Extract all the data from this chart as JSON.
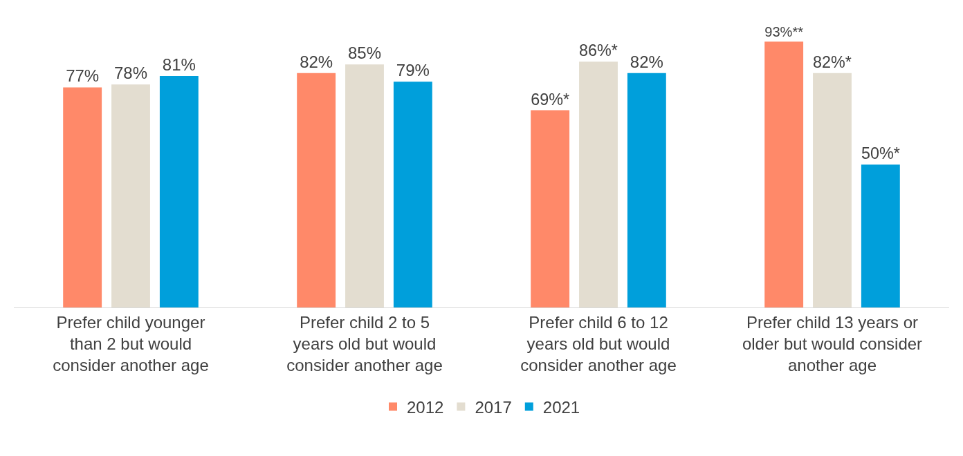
{
  "chart_data": {
    "type": "bar",
    "categories": [
      "Prefer child younger than 2 but would consider another age",
      "Prefer child 2 to 5 years old but would consider another age",
      "Prefer child 6 to 12 years old but would consider another age",
      "Prefer child 13 years or older but would consider another age"
    ],
    "series": [
      {
        "name": "2012",
        "color": "#ff8969",
        "values": [
          77,
          82,
          69,
          93
        ],
        "value_labels": [
          "77%",
          "82%",
          "69%*",
          "93%**"
        ]
      },
      {
        "name": "2017",
        "color": "#e3ddd0",
        "values": [
          78,
          85,
          86,
          82
        ],
        "value_labels": [
          "78%",
          "85%",
          "86%*",
          "82%*"
        ]
      },
      {
        "name": "2021",
        "color": "#009fdb",
        "values": [
          81,
          79,
          82,
          50
        ],
        "value_labels": [
          "81%",
          "79%",
          "82%",
          "50%*"
        ]
      }
    ],
    "grid": false,
    "legend": "bottom"
  }
}
